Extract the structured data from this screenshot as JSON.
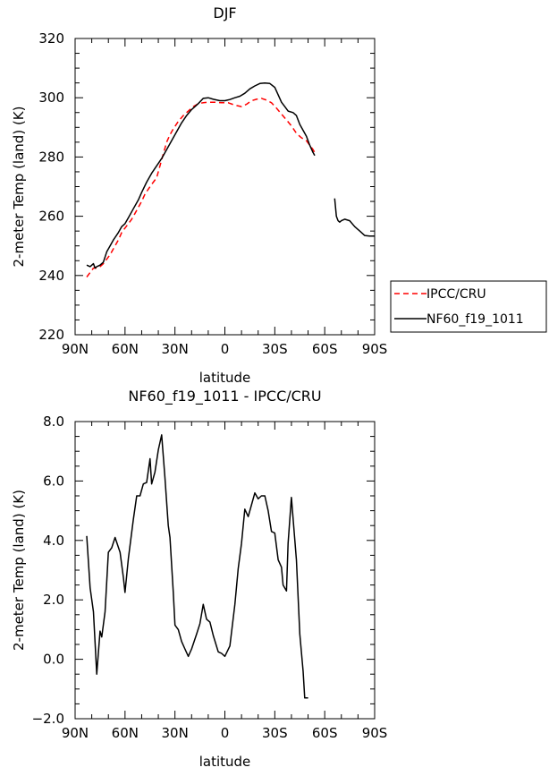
{
  "chart_data": [
    {
      "type": "line",
      "title": "DJF",
      "xlabel": "latitude",
      "ylabel": "2-meter Temp (land) (K)",
      "xlim": [
        90,
        -90
      ],
      "ylim": [
        220,
        320
      ],
      "x_ticks": [
        {
          "value": 90,
          "label": "90N"
        },
        {
          "value": 60,
          "label": "60N"
        },
        {
          "value": 30,
          "label": "30N"
        },
        {
          "value": 0,
          "label": "0"
        },
        {
          "value": -30,
          "label": "30S"
        },
        {
          "value": -60,
          "label": "60S"
        },
        {
          "value": -90,
          "label": "90S"
        }
      ],
      "y_ticks": [
        {
          "value": 220,
          "label": "220"
        },
        {
          "value": 240,
          "label": "240"
        },
        {
          "value": 260,
          "label": "260"
        },
        {
          "value": 280,
          "label": "280"
        },
        {
          "value": 300,
          "label": "300"
        },
        {
          "value": 320,
          "label": "320"
        }
      ],
      "legend": {
        "placement": "outside-right-bottom"
      },
      "series": [
        {
          "name": "IPCC/CRU",
          "color": "#ff0000",
          "style": "dashed",
          "segments": [
            [
              [
                83,
                239.5
              ],
              [
                81,
                241
              ],
              [
                79,
                242.5
              ],
              [
                77,
                242.5
              ],
              [
                75,
                243
              ],
              [
                73,
                244
              ],
              [
                71,
                245.5
              ],
              [
                69,
                247
              ],
              [
                67,
                249
              ],
              [
                64,
                252
              ],
              [
                62,
                254.5
              ],
              [
                60,
                256
              ],
              [
                58,
                257.5
              ],
              [
                56,
                259
              ],
              [
                53,
                262
              ],
              [
                50,
                265
              ],
              [
                48,
                267.5
              ],
              [
                45,
                270
              ],
              [
                43,
                271.5
              ],
              [
                41,
                273
              ],
              [
                39,
                277
              ],
              [
                37,
                281
              ],
              [
                35,
                285
              ],
              [
                33,
                287.5
              ],
              [
                31,
                289.5
              ],
              [
                28,
                292
              ],
              [
                25,
                294
              ],
              [
                22,
                295.5
              ],
              [
                19,
                297
              ],
              [
                16,
                298
              ],
              [
                13,
                298.3
              ],
              [
                10,
                298.5
              ],
              [
                6,
                298.5
              ],
              [
                2,
                298.3
              ],
              [
                -2,
                298.3
              ],
              [
                -6,
                297.5
              ],
              [
                -10,
                297
              ],
              [
                -13,
                297.8
              ],
              [
                -16,
                299
              ],
              [
                -19,
                299.5
              ],
              [
                -22,
                299.8
              ],
              [
                -25,
                299.2
              ],
              [
                -28,
                298.3
              ],
              [
                -31,
                296.5
              ],
              [
                -34,
                294.5
              ],
              [
                -37,
                292.5
              ],
              [
                -40,
                290.5
              ],
              [
                -43,
                288
              ],
              [
                -46,
                286.5
              ],
              [
                -49,
                285.5
              ],
              [
                -51,
                284
              ],
              [
                -53,
                282.5
              ],
              [
                -54,
                281.5
              ]
            ]
          ]
        },
        {
          "name": "NF60_f19_1011",
          "color": "#000000",
          "style": "solid",
          "segments": [
            [
              [
                83,
                243.5
              ],
              [
                81,
                243
              ],
              [
                79,
                244
              ],
              [
                78,
                242.5
              ],
              [
                77,
                243
              ],
              [
                75,
                243.5
              ],
              [
                73,
                244.5
              ],
              [
                71,
                248
              ],
              [
                69,
                250
              ],
              [
                67,
                252
              ],
              [
                64,
                254.5
              ],
              [
                62,
                256.5
              ],
              [
                60,
                257.5
              ],
              [
                58,
                259.5
              ],
              [
                55,
                262.5
              ],
              [
                52,
                265.5
              ],
              [
                50,
                268
              ],
              [
                47,
                271.5
              ],
              [
                44,
                274.5
              ],
              [
                41,
                277
              ],
              [
                38,
                279.5
              ],
              [
                35,
                282.5
              ],
              [
                32,
                285.5
              ],
              [
                29,
                288.5
              ],
              [
                26,
                291.5
              ],
              [
                23,
                294
              ],
              [
                20,
                296
              ],
              [
                16,
                298
              ],
              [
                13,
                299.8
              ],
              [
                10,
                300
              ],
              [
                7,
                299.5
              ],
              [
                3,
                299
              ],
              [
                0,
                299
              ],
              [
                -3,
                299.4
              ],
              [
                -6,
                300
              ],
              [
                -9,
                300.5
              ],
              [
                -12,
                301.5
              ],
              [
                -15,
                303
              ],
              [
                -18,
                304
              ],
              [
                -21,
                304.8
              ],
              [
                -24,
                305
              ],
              [
                -27,
                304.8
              ],
              [
                -30,
                303.5
              ],
              [
                -32,
                301
              ],
              [
                -34,
                298.5
              ],
              [
                -36,
                297
              ],
              [
                -38,
                295.5
              ],
              [
                -41,
                295
              ],
              [
                -43,
                294
              ],
              [
                -45,
                291
              ],
              [
                -47,
                289
              ],
              [
                -49,
                287
              ],
              [
                -51,
                284
              ],
              [
                -53,
                281.5
              ],
              [
                -54,
                280.5
              ]
            ],
            [
              [
                -66,
                266
              ],
              [
                -67,
                260
              ],
              [
                -68,
                258.5
              ],
              [
                -69,
                258
              ],
              [
                -70,
                258.5
              ],
              [
                -72,
                259
              ],
              [
                -75,
                258.5
              ],
              [
                -78,
                256.5
              ],
              [
                -81,
                255
              ],
              [
                -84,
                253.5
              ],
              [
                -87,
                253.3
              ],
              [
                -90,
                253.3
              ]
            ]
          ]
        }
      ]
    },
    {
      "type": "line",
      "title": "NF60_f19_1011 - IPCC/CRU",
      "xlabel": "latitude",
      "ylabel": "2-meter Temp (land) (K)",
      "xlim": [
        90,
        -90
      ],
      "ylim": [
        -2.0,
        8.0
      ],
      "x_ticks": [
        {
          "value": 90,
          "label": "90N"
        },
        {
          "value": 60,
          "label": "60N"
        },
        {
          "value": 30,
          "label": "30N"
        },
        {
          "value": 0,
          "label": "0"
        },
        {
          "value": -30,
          "label": "30S"
        },
        {
          "value": -60,
          "label": "60S"
        },
        {
          "value": -90,
          "label": "90S"
        }
      ],
      "y_ticks": [
        {
          "value": -2.0,
          "label": "−2.0"
        },
        {
          "value": 0.0,
          "label": "0.0"
        },
        {
          "value": 2.0,
          "label": "2.0"
        },
        {
          "value": 4.0,
          "label": "4.0"
        },
        {
          "value": 6.0,
          "label": "6.0"
        },
        {
          "value": 8.0,
          "label": "8.0"
        }
      ],
      "series": [
        {
          "color": "#000000",
          "style": "solid",
          "segments": [
            [
              [
                83,
                4.15
              ],
              [
                81,
                2.4
              ],
              [
                79,
                1.6
              ],
              [
                77,
                -0.5
              ],
              [
                75,
                0.95
              ],
              [
                74,
                0.75
              ],
              [
                72,
                1.6
              ],
              [
                70,
                3.6
              ],
              [
                68,
                3.75
              ],
              [
                66,
                4.1
              ],
              [
                63,
                3.6
              ],
              [
                61,
                2.75
              ],
              [
                60,
                2.25
              ],
              [
                58,
                3.4
              ],
              [
                55,
                4.7
              ],
              [
                53,
                5.5
              ],
              [
                51,
                5.5
              ],
              [
                49,
                5.9
              ],
              [
                47,
                5.95
              ],
              [
                45,
                6.75
              ],
              [
                44,
                5.9
              ],
              [
                42,
                6.3
              ],
              [
                40,
                7.05
              ],
              [
                38,
                7.55
              ],
              [
                36,
                6.1
              ],
              [
                34,
                4.5
              ],
              [
                33,
                4.1
              ],
              [
                31,
                2.25
              ],
              [
                30,
                1.15
              ],
              [
                28,
                1.0
              ],
              [
                26,
                0.6
              ],
              [
                24,
                0.35
              ],
              [
                22,
                0.1
              ],
              [
                20,
                0.35
              ],
              [
                17,
                0.85
              ],
              [
                15,
                1.2
              ],
              [
                13,
                1.85
              ],
              [
                11,
                1.35
              ],
              [
                9,
                1.25
              ],
              [
                7,
                0.8
              ],
              [
                4,
                0.25
              ],
              [
                2,
                0.2
              ],
              [
                0,
                0.1
              ],
              [
                -3,
                0.45
              ],
              [
                -6,
                1.85
              ],
              [
                -8,
                3.05
              ],
              [
                -10,
                3.9
              ],
              [
                -12,
                5.05
              ],
              [
                -14,
                4.8
              ],
              [
                -16,
                5.2
              ],
              [
                -18,
                5.6
              ],
              [
                -20,
                5.4
              ],
              [
                -22,
                5.5
              ],
              [
                -24,
                5.5
              ],
              [
                -26,
                5.0
              ],
              [
                -28,
                4.3
              ],
              [
                -30,
                4.25
              ],
              [
                -32,
                3.35
              ],
              [
                -34,
                3.1
              ],
              [
                -35,
                2.5
              ],
              [
                -37,
                2.3
              ],
              [
                -38,
                3.9
              ],
              [
                -40,
                5.45
              ],
              [
                -43,
                3.35
              ],
              [
                -45,
                0.85
              ],
              [
                -47,
                -0.4
              ],
              [
                -48,
                -1.3
              ],
              [
                -50,
                -1.3
              ]
            ]
          ]
        }
      ]
    }
  ]
}
